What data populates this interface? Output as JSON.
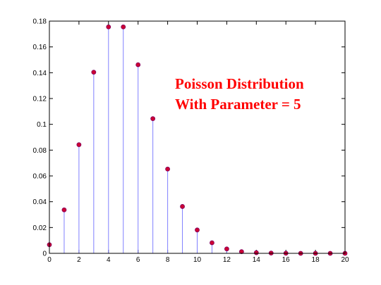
{
  "chart_data": {
    "type": "stem",
    "x": [
      0,
      1,
      2,
      3,
      4,
      5,
      6,
      7,
      8,
      9,
      10,
      11,
      12,
      13,
      14,
      15,
      16,
      17,
      18,
      19,
      20
    ],
    "y": [
      0.0067,
      0.0337,
      0.0842,
      0.1404,
      0.1755,
      0.1755,
      0.1462,
      0.1044,
      0.0653,
      0.0363,
      0.0181,
      0.0082,
      0.0034,
      0.0013,
      0.0005,
      0.0002,
      5e-05,
      1e-05,
      3e-06,
      1e-06,
      2e-07
    ],
    "xlim": [
      0,
      20
    ],
    "ylim": [
      0,
      0.18
    ],
    "xticks": [
      0,
      2,
      4,
      6,
      8,
      10,
      12,
      14,
      16,
      18,
      20
    ],
    "yticks": [
      0,
      0.02,
      0.04,
      0.06,
      0.08,
      0.1,
      0.12,
      0.14,
      0.16,
      0.18
    ],
    "xtick_labels": [
      "0",
      "2",
      "4",
      "6",
      "8",
      "10",
      "12",
      "14",
      "16",
      "18",
      "20"
    ],
    "ytick_labels": [
      "0",
      "0.02",
      "0.04",
      "0.06",
      "0.08",
      "0.1",
      "0.12",
      "0.14",
      "0.16",
      "0.18"
    ],
    "annotation": [
      "Poisson Distribution",
      "With Parameter = 5"
    ],
    "stem_color": "#8080ff",
    "marker_fill": "#cc0033",
    "marker_edge": "#800060",
    "annotation_color": "#ff0000",
    "grid": false,
    "box": true
  }
}
